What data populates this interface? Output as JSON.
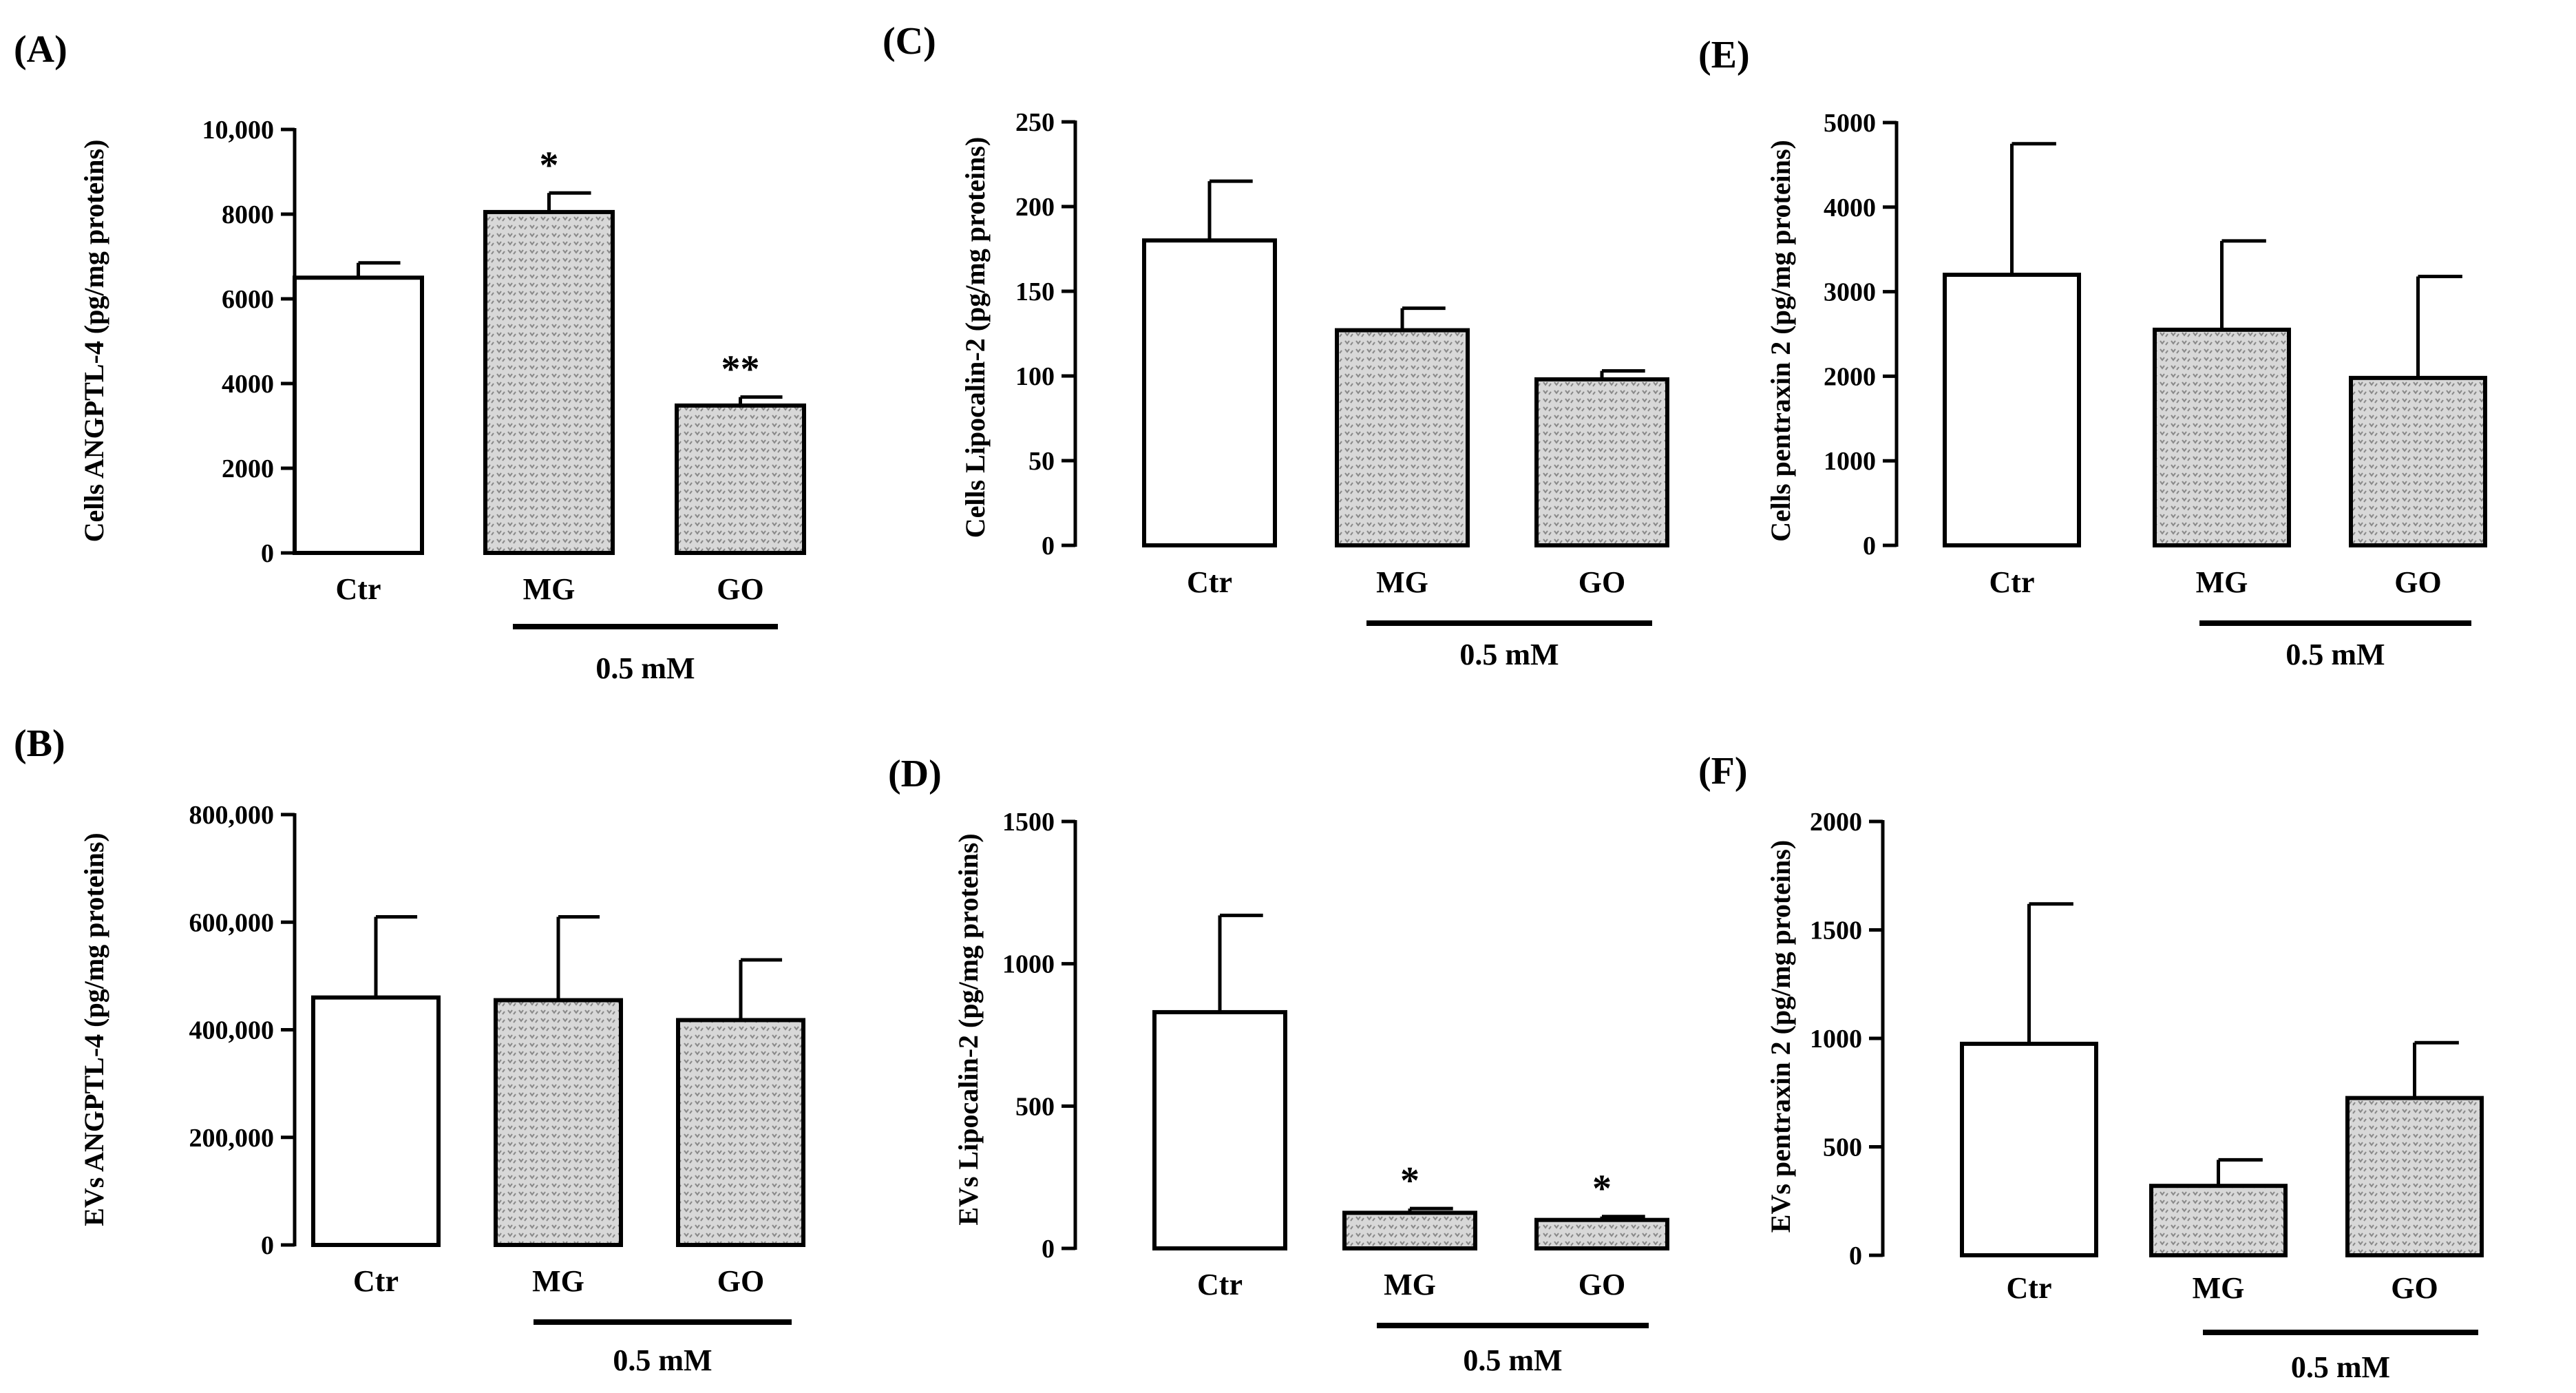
{
  "hatch_color": "#888888",
  "bar_colors": {
    "control": "#ffffff",
    "treated": "#d8d8d8"
  },
  "chart_data": [
    {
      "panel": "(A)",
      "type": "bar",
      "categories": [
        "Ctr",
        "MG",
        "GO"
      ],
      "values": [
        6500,
        8050,
        3480
      ],
      "errors": [
        350,
        450,
        200
      ],
      "significance": [
        "",
        "*",
        "**"
      ],
      "ylabel": "Cells ANGPTL-4 (pg/mg proteins)",
      "ylim": [
        0,
        10000
      ],
      "yticks": [
        "0",
        "2000",
        "4000",
        "6000",
        "8000",
        "10,000"
      ],
      "bracket_label": "0.5 mM"
    },
    {
      "panel": "(B)",
      "type": "bar",
      "categories": [
        "Ctr",
        "MG",
        "GO"
      ],
      "values": [
        460000,
        455000,
        418000
      ],
      "errors": [
        150000,
        155000,
        112000
      ],
      "significance": [
        "",
        "",
        ""
      ],
      "ylabel": "EVs ANGPTL-4 (pg/mg proteins)",
      "ylim": [
        0,
        800000
      ],
      "yticks": [
        "0",
        "200,000",
        "400,000",
        "600,000",
        "800,000"
      ],
      "bracket_label": "0.5 mM"
    },
    {
      "panel": "(C)",
      "type": "bar",
      "categories": [
        "Ctr",
        "MG",
        "GO"
      ],
      "values": [
        180,
        127,
        98
      ],
      "errors": [
        35,
        13,
        5
      ],
      "significance": [
        "",
        "",
        ""
      ],
      "ylabel": "Cells Lipocalin-2 (pg/mg proteins)",
      "ylim": [
        0,
        250
      ],
      "yticks": [
        "0",
        "50",
        "100",
        "150",
        "200",
        "250"
      ],
      "bracket_label": "0.5 mM"
    },
    {
      "panel": "(D)",
      "type": "bar",
      "categories": [
        "Ctr",
        "MG",
        "GO"
      ],
      "values": [
        830,
        125,
        100
      ],
      "errors": [
        340,
        15,
        12
      ],
      "significance": [
        "",
        "*",
        "*"
      ],
      "ylabel": "EVs Lipocalin-2 (pg/mg proteins)",
      "ylim": [
        0,
        1500
      ],
      "yticks": [
        "0",
        "500",
        "1000",
        "1500"
      ],
      "bracket_label": "0.5 mM"
    },
    {
      "panel": "(E)",
      "type": "bar",
      "categories": [
        "Ctr",
        "MG",
        "GO"
      ],
      "values": [
        3200,
        2550,
        1980
      ],
      "errors": [
        1550,
        1050,
        1200
      ],
      "significance": [
        "",
        "",
        ""
      ],
      "ylabel": "Cells pentraxin 2 (pg/mg proteins)",
      "ylim": [
        0,
        5000
      ],
      "yticks": [
        "0",
        "1000",
        "2000",
        "3000",
        "4000",
        "5000"
      ],
      "bracket_label": "0.5 mM"
    },
    {
      "panel": "(F)",
      "type": "bar",
      "categories": [
        "Ctr",
        "MG",
        "GO"
      ],
      "values": [
        975,
        320,
        725
      ],
      "errors": [
        645,
        120,
        255
      ],
      "significance": [
        "",
        "",
        ""
      ],
      "ylabel": "EVs pentraxin 2 (pg/mg proteins)",
      "ylim": [
        0,
        2000
      ],
      "yticks": [
        "0",
        "500",
        "1000",
        "1500",
        "2000"
      ],
      "bracket_label": "0.5 mM"
    }
  ]
}
